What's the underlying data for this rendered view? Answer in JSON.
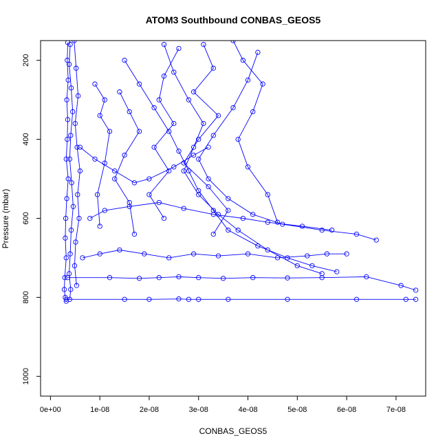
{
  "chart_data": {
    "type": "scatter",
    "title": "ATOM3 Southbound CONBAS_GEOS5",
    "xlabel": "CONBAS_GEOS5",
    "ylabel": "Pressure (mbar)",
    "xlim": [
      -2e-09,
      7.6e-08
    ],
    "ylim": [
      1050,
      150
    ],
    "y_reversed": true,
    "x_ticks": [
      0,
      1e-08,
      2e-08,
      3e-08,
      4e-08,
      5e-08,
      6e-08,
      7e-08
    ],
    "x_tick_labels": [
      "0e+00",
      "1e-08",
      "2e-08",
      "3e-08",
      "4e-08",
      "5e-08",
      "6e-08",
      "7e-08"
    ],
    "y_ticks": [
      200,
      400,
      600,
      800,
      1000
    ],
    "y_tick_labels": [
      "200",
      "400",
      "600",
      "800",
      "1000"
    ],
    "grid": false,
    "marker": "open-circle",
    "line": true,
    "series_color": "#0000ff",
    "series": [
      {
        "x": [
          3.5e-09,
          3.4e-09,
          3.6e-09,
          3.3e-09,
          3.5e-09,
          3.4e-09,
          3.2e-09,
          3.6e-09,
          3.3e-09,
          3.1e-09,
          3e-09,
          3.2e-09,
          2.9e-09,
          2.8e-09,
          3e-09,
          3.2e-09
        ],
        "y": [
          155,
          200,
          250,
          300,
          350,
          400,
          450,
          500,
          550,
          600,
          650,
          700,
          750,
          780,
          800,
          810
        ]
      },
      {
        "x": [
          4e-09,
          3.8e-09,
          4.2e-09,
          4.5e-09,
          4.1e-09,
          3.9e-09,
          4.3e-09,
          4.6e-09,
          4.2e-09,
          4e-09,
          3.8e-09,
          4.1e-09,
          3.9e-09
        ],
        "y": [
          160,
          210,
          270,
          330,
          390,
          450,
          510,
          570,
          630,
          690,
          740,
          780,
          805
        ]
      },
      {
        "x": [
          4.8e-09,
          5.2e-09,
          5.6e-09,
          5e-09,
          5.4e-09,
          6e-09,
          5.5e-09,
          5.8e-09,
          5.1e-09,
          4.9e-09,
          5.3e-09
        ],
        "y": [
          150,
          220,
          290,
          360,
          420,
          480,
          540,
          600,
          660,
          720,
          770
        ]
      },
      {
        "x": [
          2.3e-08,
          2.5e-08,
          2.8e-08,
          3.1e-08,
          2.9e-08,
          2.7e-08,
          3e-08,
          3.4e-08,
          3.8e-08,
          4.4e-08,
          5e-08,
          5.5e-08
        ],
        "y": [
          160,
          230,
          300,
          360,
          420,
          480,
          540,
          590,
          630,
          680,
          720,
          740
        ]
      },
      {
        "x": [
          4.2e-08,
          4e-08,
          3.7e-08,
          3.3e-08,
          3e-08,
          3.2e-08,
          3.6e-08,
          4.1e-08,
          4.7e-08,
          5.5e-08,
          6.2e-08,
          6.6e-08
        ],
        "y": [
          180,
          250,
          320,
          390,
          450,
          500,
          550,
          590,
          615,
          630,
          640,
          655
        ]
      },
      {
        "x": [
          1.5e-08,
          1.8e-08,
          2.1e-08,
          2.4e-08,
          2.6e-08,
          2.8e-08,
          3e-08,
          3.3e-08,
          3.6e-08,
          4.2e-08,
          4.8e-08,
          5.3e-08,
          5.8e-08
        ],
        "y": [
          200,
          260,
          320,
          380,
          430,
          480,
          530,
          580,
          630,
          670,
          700,
          720,
          735
        ]
      },
      {
        "x": [
          3.5e-09,
          1.2e-08,
          1.8e-08,
          2.2e-08,
          2.6e-08,
          3e-08,
          3.5e-08,
          4.1e-08,
          4.8e-08,
          5.5e-08,
          6.4e-08,
          7.1e-08,
          7.4e-08
        ],
        "y": [
          750,
          750,
          752,
          750,
          748,
          750,
          752,
          750,
          751,
          750,
          748,
          770,
          782
        ]
      },
      {
        "x": [
          3.2e-09,
          1.5e-08,
          2e-08,
          2.6e-08,
          2.8e-08,
          3e-08,
          3.6e-08,
          4.8e-08,
          6.2e-08,
          7.2e-08,
          7.4e-08
        ],
        "y": [
          805,
          805,
          805,
          804,
          805,
          805,
          805,
          805,
          805,
          805,
          805
        ]
      },
      {
        "x": [
          6.5e-09,
          1e-08,
          1.4e-08,
          1.9e-08,
          2.4e-08,
          2.9e-08,
          3.4e-08,
          4e-08,
          4.6e-08,
          5.2e-08,
          5.6e-08,
          6e-08
        ],
        "y": [
          700,
          690,
          680,
          690,
          700,
          690,
          695,
          690,
          700,
          695,
          690,
          690
        ]
      },
      {
        "x": [
          8e-09,
          1.1e-08,
          1.6e-08,
          2.2e-08,
          2.7e-08,
          3.3e-08,
          3.9e-08,
          4.4e-08,
          5.1e-08,
          5.7e-08
        ],
        "y": [
          600,
          580,
          570,
          560,
          575,
          590,
          600,
          610,
          620,
          630
        ]
      },
      {
        "x": [
          6e-09,
          9e-09,
          1.3e-08,
          1.7e-08,
          2e-08,
          2.5e-08,
          2.9e-08,
          3.2e-08
        ],
        "y": [
          420,
          450,
          480,
          510,
          500,
          470,
          440,
          420
        ]
      },
      {
        "x": [
          3.1e-08,
          3.3e-08,
          2.9e-08,
          3.4e-08,
          3e-08,
          2.7e-08,
          3.2e-08,
          3.6e-08,
          3.3e-08
        ],
        "y": [
          160,
          220,
          280,
          340,
          400,
          460,
          520,
          580,
          640
        ]
      },
      {
        "x": [
          2.6e-08,
          2.3e-08,
          2.2e-08,
          2.5e-08,
          2.1e-08,
          2.4e-08,
          2e-08,
          2.3e-08
        ],
        "y": [
          170,
          240,
          300,
          360,
          420,
          480,
          540,
          600
        ]
      },
      {
        "x": [
          3.7e-08,
          3.9e-08,
          4.3e-08,
          4.1e-08,
          3.8e-08,
          4e-08,
          4.4e-08,
          4.6e-08
        ],
        "y": [
          150,
          200,
          260,
          330,
          400,
          470,
          540,
          610
        ]
      },
      {
        "x": [
          9e-09,
          1.1e-08,
          1e-08,
          1.2e-08,
          1.1e-08,
          9.5e-09,
          1e-08
        ],
        "y": [
          260,
          300,
          340,
          380,
          460,
          540,
          620
        ]
      },
      {
        "x": [
          1.4e-08,
          1.6e-08,
          1.8e-08,
          1.5e-08,
          1.3e-08,
          1.6e-08,
          1.7e-08
        ],
        "y": [
          280,
          330,
          380,
          440,
          500,
          560,
          640
        ]
      }
    ]
  }
}
